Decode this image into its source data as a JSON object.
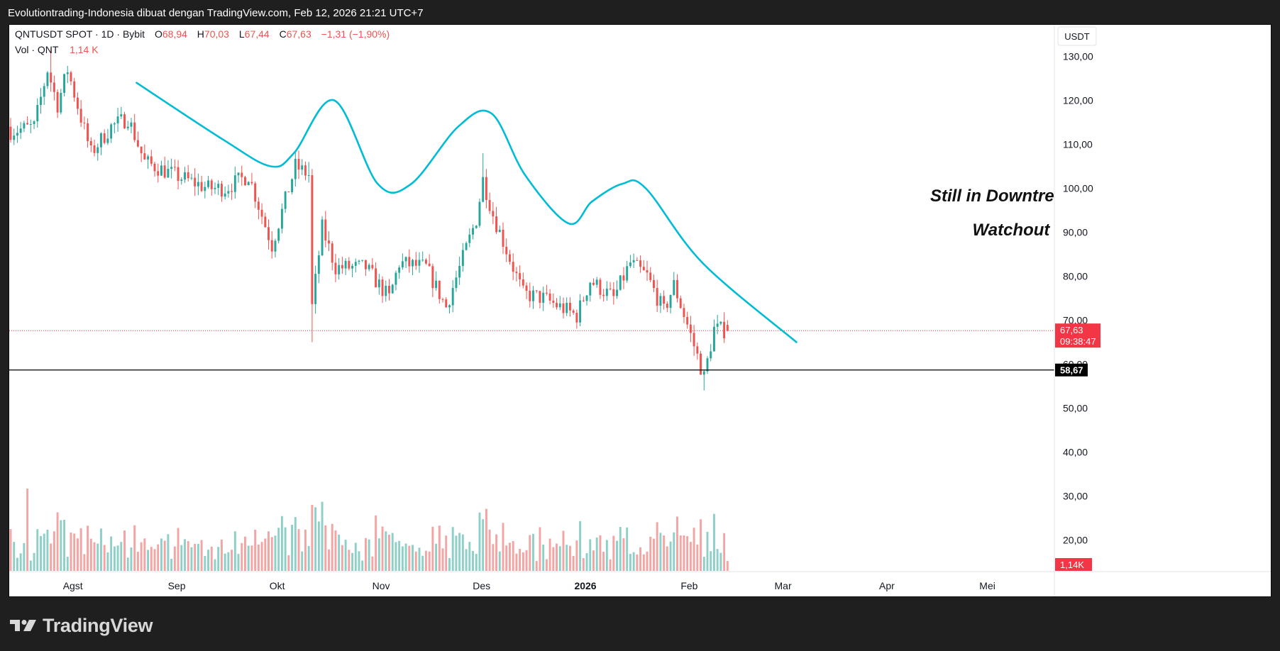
{
  "header": {
    "attribution": "Evolutiontrading-Indonesia dibuat dengan TradingView.com, Feb 12, 2026 21:21 UTC+7"
  },
  "legend": {
    "symbol": "QNTUSDT SPOT · 1D · Bybit",
    "o_label": "O",
    "o_value": "68,94",
    "h_label": "H",
    "h_value": "70,03",
    "l_label": "L",
    "l_value": "67,44",
    "c_label": "C",
    "c_value": "67,63",
    "change": "−1,31 (−1,90%)",
    "vol_label": "Vol · QNT",
    "vol_value": "1,14 K"
  },
  "price_axis": {
    "currency": "USDT",
    "ticks": [
      "130,00",
      "120,00",
      "110,00",
      "100,00",
      "90,00",
      "80,00",
      "70,00",
      "60,00",
      "50,00",
      "40,00",
      "30,00",
      "20,00"
    ],
    "last_price_label": "67,63",
    "countdown_label": "09:38:47",
    "level_label": "58,67",
    "volume_label": "1,14K"
  },
  "time_axis": {
    "labels": [
      "Agst",
      "Sep",
      "Okt",
      "Nov",
      "Des",
      "2026",
      "Feb",
      "Mar",
      "Apr",
      "Mei"
    ]
  },
  "annotations": {
    "line1": "Still in Downtrend",
    "line2": "Watchout"
  },
  "footer": {
    "brand": "TradingView"
  },
  "colors": {
    "up": "#26a69a",
    "down": "#ef5350",
    "vol_up": "#8ed0c8",
    "vol_down": "#f2a5a3",
    "trend_curve": "#00bcd4",
    "level_line": "#000000",
    "last_price_bg": "#f23645"
  },
  "chart_data": {
    "type": "candlestick",
    "symbol": "QNTUSDT",
    "interval": "1D",
    "x_range": [
      "2025-07-13",
      "2026-05-21"
    ],
    "y_range": [
      15,
      138
    ],
    "last_price": 67.63,
    "horizontal_level": 58.67,
    "last_candle": {
      "date": "2026-02-12",
      "open": 68.94,
      "high": 70.03,
      "low": 67.44,
      "close": 67.63,
      "volume": 1140
    },
    "anchors": [
      [
        "2025-07-13",
        113
      ],
      [
        "2025-07-20",
        114
      ],
      [
        "2025-07-24",
        127
      ],
      [
        "2025-07-27",
        119
      ],
      [
        "2025-07-30",
        127
      ],
      [
        "2025-08-03",
        116
      ],
      [
        "2025-08-06",
        108
      ],
      [
        "2025-08-12",
        114
      ],
      [
        "2025-08-17",
        116
      ],
      [
        "2025-08-22",
        106
      ],
      [
        "2025-08-31",
        103
      ],
      [
        "2025-09-10",
        100
      ],
      [
        "2025-09-15",
        100
      ],
      [
        "2025-09-22",
        103
      ],
      [
        "2025-09-29",
        87
      ],
      [
        "2025-10-06",
        105
      ],
      [
        "2025-10-10",
        103
      ],
      [
        "2025-10-11",
        73
      ],
      [
        "2025-10-14",
        91
      ],
      [
        "2025-10-18",
        82
      ],
      [
        "2025-10-27",
        82
      ],
      [
        "2025-11-03",
        75
      ],
      [
        "2025-11-06",
        83
      ],
      [
        "2025-11-14",
        82
      ],
      [
        "2025-11-20",
        73
      ],
      [
        "2025-11-29",
        93
      ],
      [
        "2025-12-01",
        102
      ],
      [
        "2025-12-04",
        94
      ],
      [
        "2025-12-13",
        76
      ],
      [
        "2025-12-19",
        75
      ],
      [
        "2025-12-29",
        71
      ],
      [
        "2026-01-02",
        79
      ],
      [
        "2026-01-09",
        75
      ],
      [
        "2026-01-14",
        83
      ],
      [
        "2026-01-19",
        80
      ],
      [
        "2026-01-24",
        72
      ],
      [
        "2026-01-27",
        78
      ],
      [
        "2026-01-31",
        69
      ],
      [
        "2026-02-05",
        57
      ],
      [
        "2026-02-08",
        68
      ],
      [
        "2026-02-12",
        67.63
      ]
    ],
    "trend_curve": [
      [
        "2025-08-20",
        124
      ],
      [
        "2025-09-15",
        111
      ],
      [
        "2025-09-29",
        105
      ],
      [
        "2025-10-06",
        108
      ],
      [
        "2025-10-18",
        120
      ],
      [
        "2025-10-31",
        101
      ],
      [
        "2025-11-10",
        101
      ],
      [
        "2025-11-24",
        114
      ],
      [
        "2025-12-04",
        117
      ],
      [
        "2025-12-14",
        103
      ],
      [
        "2025-12-27",
        92
      ],
      [
        "2026-01-03",
        97
      ],
      [
        "2026-01-12",
        101
      ],
      [
        "2026-01-19",
        100
      ],
      [
        "2026-02-05",
        83
      ],
      [
        "2026-03-05",
        65
      ]
    ]
  }
}
